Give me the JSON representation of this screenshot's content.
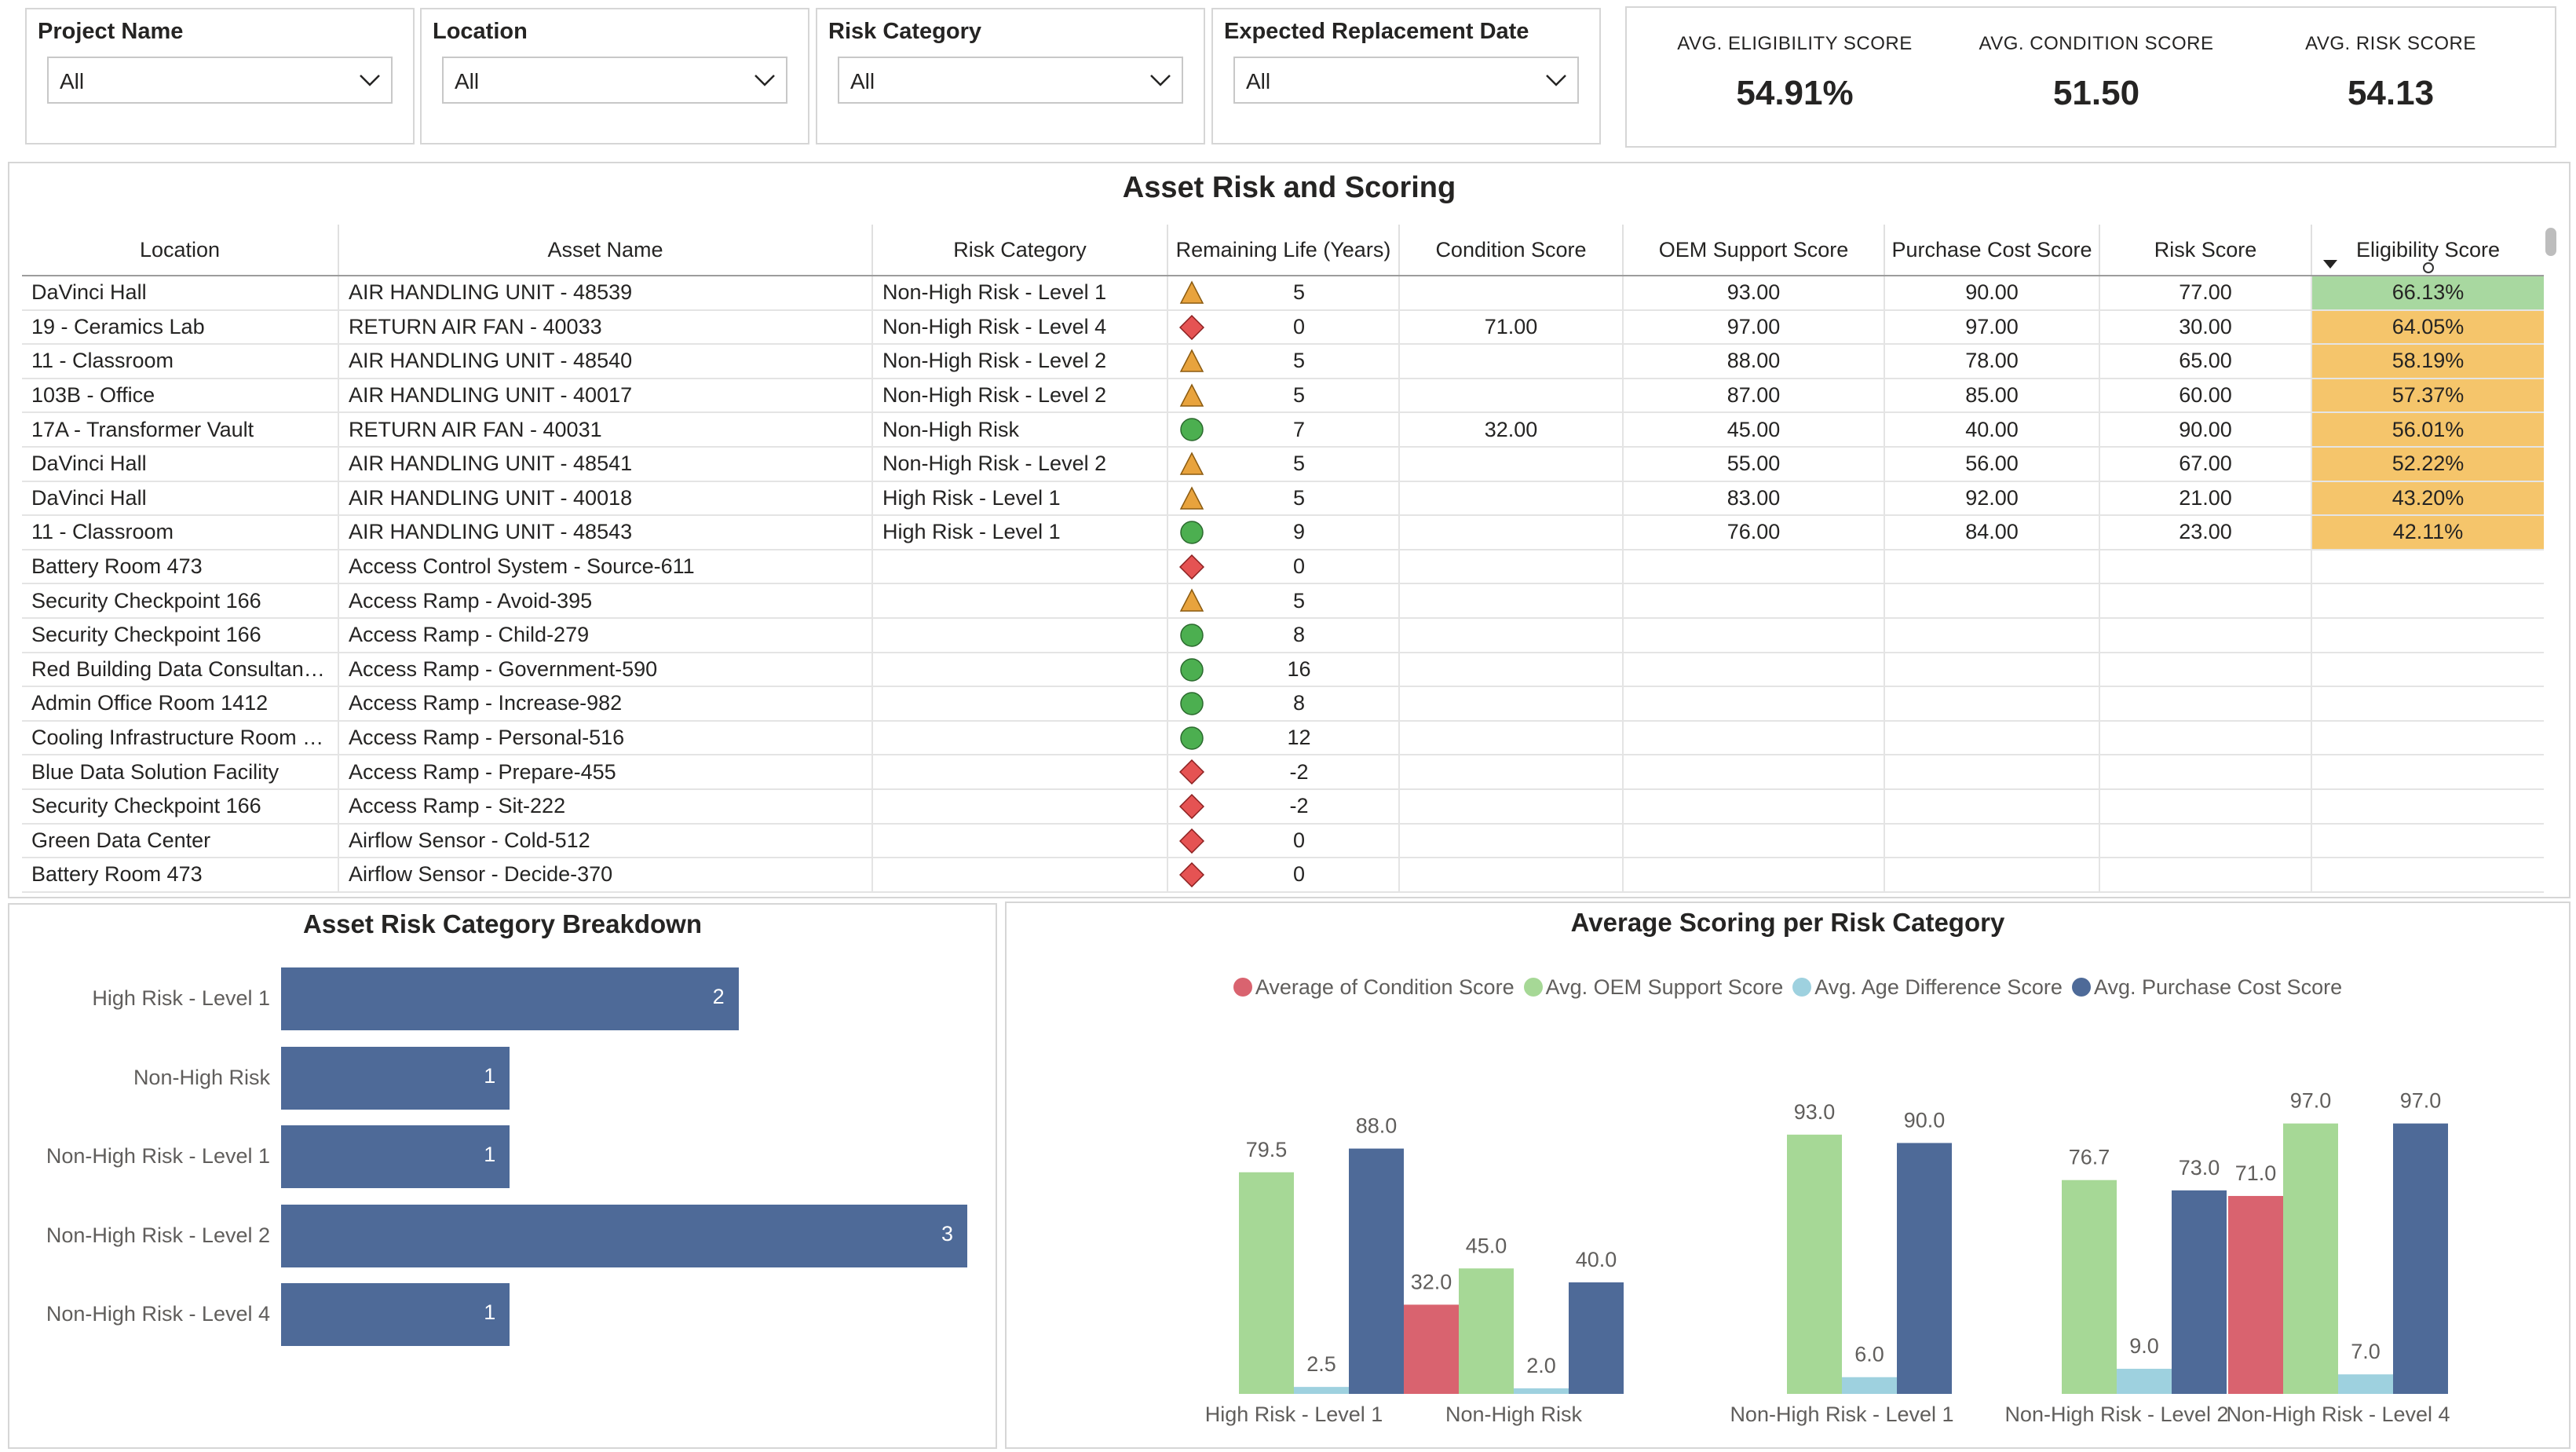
{
  "filters": [
    {
      "label": "Project Name",
      "value": "All"
    },
    {
      "label": "Location",
      "value": "All"
    },
    {
      "label": "Risk Category",
      "value": "All"
    },
    {
      "label": "Expected Replacement Date",
      "value": "All"
    }
  ],
  "kpis": [
    {
      "label": "AVG. ELIGIBILITY SCORE",
      "value": "54.91%"
    },
    {
      "label": "AVG. CONDITION SCORE",
      "value": "51.50"
    },
    {
      "label": "AVG. RISK SCORE",
      "value": "54.13"
    }
  ],
  "table": {
    "title": "Asset Risk and Scoring",
    "columns": [
      "Location",
      "Asset Name",
      "Risk Category",
      "Remaining Life (Years)",
      "Condition Score",
      "OEM Support Score",
      "Purchase Cost Score",
      "Risk Score",
      "Eligibility Score"
    ],
    "colors": {
      "triangle": "#e8a33d",
      "diamond": "#e55353",
      "circle": "#4caf50",
      "elig_green": "#a8d8a0",
      "elig_orange": "#f5c56b"
    },
    "rows": [
      {
        "location": "DaVinci Hall",
        "asset": "AIR HANDLING UNIT - 48539",
        "risk": "Non-High Risk - Level 1",
        "icon": "triangle-icon",
        "life": "5",
        "condition": "",
        "oem": "93.00",
        "purchase": "90.00",
        "riskscore": "77.00",
        "elig": "66.13%",
        "elig_level": "green"
      },
      {
        "location": "19 - Ceramics Lab",
        "asset": "RETURN AIR FAN - 40033",
        "risk": "Non-High Risk - Level 4",
        "icon": "diamond-icon",
        "life": "0",
        "condition": "71.00",
        "oem": "97.00",
        "purchase": "97.00",
        "riskscore": "30.00",
        "elig": "64.05%",
        "elig_level": "orange"
      },
      {
        "location": "11 - Classroom",
        "asset": "AIR HANDLING UNIT - 48540",
        "risk": "Non-High Risk - Level 2",
        "icon": "triangle-icon",
        "life": "5",
        "condition": "",
        "oem": "88.00",
        "purchase": "78.00",
        "riskscore": "65.00",
        "elig": "58.19%",
        "elig_level": "orange"
      },
      {
        "location": "103B - Office",
        "asset": "AIR HANDLING UNIT - 40017",
        "risk": "Non-High Risk - Level 2",
        "icon": "triangle-icon",
        "life": "5",
        "condition": "",
        "oem": "87.00",
        "purchase": "85.00",
        "riskscore": "60.00",
        "elig": "57.37%",
        "elig_level": "orange"
      },
      {
        "location": "17A - Transformer Vault",
        "asset": "RETURN AIR FAN - 40031",
        "risk": "Non-High Risk",
        "icon": "circle-icon",
        "life": "7",
        "condition": "32.00",
        "oem": "45.00",
        "purchase": "40.00",
        "riskscore": "90.00",
        "elig": "56.01%",
        "elig_level": "orange"
      },
      {
        "location": "DaVinci Hall",
        "asset": "AIR HANDLING UNIT - 48541",
        "risk": "Non-High Risk - Level 2",
        "icon": "triangle-icon",
        "life": "5",
        "condition": "",
        "oem": "55.00",
        "purchase": "56.00",
        "riskscore": "67.00",
        "elig": "52.22%",
        "elig_level": "orange"
      },
      {
        "location": "DaVinci Hall",
        "asset": "AIR HANDLING UNIT - 40018",
        "risk": "High Risk - Level 1",
        "icon": "triangle-icon",
        "life": "5",
        "condition": "",
        "oem": "83.00",
        "purchase": "92.00",
        "riskscore": "21.00",
        "elig": "43.20%",
        "elig_level": "orange"
      },
      {
        "location": "11 - Classroom",
        "asset": "AIR HANDLING UNIT - 48543",
        "risk": "High Risk - Level 1",
        "icon": "circle-icon",
        "life": "9",
        "condition": "",
        "oem": "76.00",
        "purchase": "84.00",
        "riskscore": "23.00",
        "elig": "42.11%",
        "elig_level": "orange"
      },
      {
        "location": "Battery Room 473",
        "asset": "Access Control System - Source-611",
        "risk": "",
        "icon": "diamond-icon",
        "life": "0",
        "condition": "",
        "oem": "",
        "purchase": "",
        "riskscore": "",
        "elig": "",
        "elig_level": "none"
      },
      {
        "location": "Security Checkpoint 166",
        "asset": "Access Ramp - Avoid-395",
        "risk": "",
        "icon": "triangle-icon",
        "life": "5",
        "condition": "",
        "oem": "",
        "purchase": "",
        "riskscore": "",
        "elig": "",
        "elig_level": "none"
      },
      {
        "location": "Security Checkpoint 166",
        "asset": "Access Ramp - Child-279",
        "risk": "",
        "icon": "circle-icon",
        "life": "8",
        "condition": "",
        "oem": "",
        "purchase": "",
        "riskscore": "",
        "elig": "",
        "elig_level": "none"
      },
      {
        "location": "Red Building Data Consultant…",
        "asset": "Access Ramp - Government-590",
        "risk": "",
        "icon": "circle-icon",
        "life": "16",
        "condition": "",
        "oem": "",
        "purchase": "",
        "riskscore": "",
        "elig": "",
        "elig_level": "none"
      },
      {
        "location": "Admin Office Room 1412",
        "asset": "Access Ramp - Increase-982",
        "risk": "",
        "icon": "circle-icon",
        "life": "8",
        "condition": "",
        "oem": "",
        "purchase": "",
        "riskscore": "",
        "elig": "",
        "elig_level": "none"
      },
      {
        "location": "Cooling Infrastructure Room …",
        "asset": "Access Ramp - Personal-516",
        "risk": "",
        "icon": "circle-icon",
        "life": "12",
        "condition": "",
        "oem": "",
        "purchase": "",
        "riskscore": "",
        "elig": "",
        "elig_level": "none"
      },
      {
        "location": "Blue Data Solution Facility",
        "asset": "Access Ramp - Prepare-455",
        "risk": "",
        "icon": "diamond-icon",
        "life": "-2",
        "condition": "",
        "oem": "",
        "purchase": "",
        "riskscore": "",
        "elig": "",
        "elig_level": "none"
      },
      {
        "location": "Security Checkpoint 166",
        "asset": "Access Ramp - Sit-222",
        "risk": "",
        "icon": "diamond-icon",
        "life": "-2",
        "condition": "",
        "oem": "",
        "purchase": "",
        "riskscore": "",
        "elig": "",
        "elig_level": "none"
      },
      {
        "location": "Green Data Center",
        "asset": "Airflow Sensor - Cold-512",
        "risk": "",
        "icon": "diamond-icon",
        "life": "0",
        "condition": "",
        "oem": "",
        "purchase": "",
        "riskscore": "",
        "elig": "",
        "elig_level": "none"
      },
      {
        "location": "Battery Room 473",
        "asset": "Airflow Sensor - Decide-370",
        "risk": "",
        "icon": "diamond-icon",
        "life": "0",
        "condition": "",
        "oem": "",
        "purchase": "",
        "riskscore": "",
        "elig": "",
        "elig_level": "none"
      }
    ]
  },
  "chart_data": [
    {
      "type": "bar",
      "orientation": "horizontal",
      "title": "Asset Risk Category Breakdown",
      "categories": [
        "High Risk - Level 1",
        "Non-High Risk",
        "Non-High Risk - Level 1",
        "Non-High Risk - Level 2",
        "Non-High Risk - Level 4"
      ],
      "values": [
        2,
        1,
        1,
        3,
        1
      ],
      "xlim": [
        0,
        3
      ],
      "color": "#4e6a98"
    },
    {
      "type": "bar",
      "title": "Average Scoring per Risk Category",
      "categories": [
        "High Risk - Level 1",
        "Non-High Risk",
        "Non-High Risk - Level 1",
        "Non-High Risk - Level 2",
        "Non-High Risk - Level 4"
      ],
      "series": [
        {
          "name": "Average of Condition Score",
          "color": "#d9636f",
          "values": [
            null,
            32.0,
            null,
            null,
            71.0
          ]
        },
        {
          "name": "Avg. OEM Support Score",
          "color": "#a6d896",
          "values": [
            79.5,
            45.0,
            93.0,
            76.7,
            97.0
          ]
        },
        {
          "name": "Avg. Age Difference Score",
          "color": "#9ed1df",
          "values": [
            2.5,
            2.0,
            6.0,
            9.0,
            7.0
          ]
        },
        {
          "name": "Avg. Purchase Cost Score",
          "color": "#4e6a98",
          "values": [
            88.0,
            40.0,
            90.0,
            73.0,
            97.0
          ]
        }
      ],
      "ylim": [
        0,
        100
      ],
      "legend": "top-center"
    }
  ]
}
